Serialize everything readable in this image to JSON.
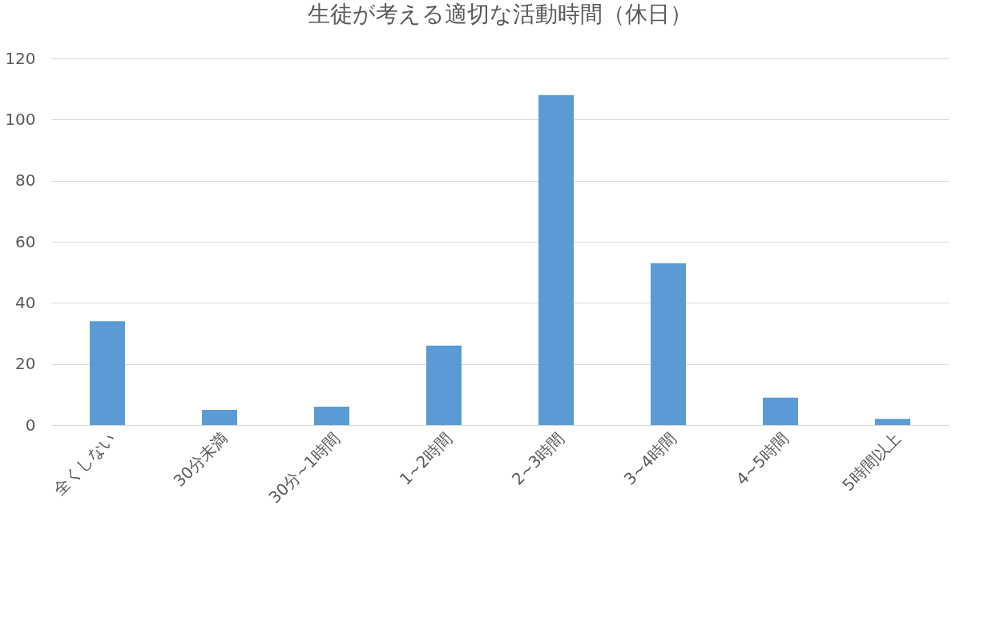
{
  "chart_data": {
    "type": "bar",
    "title": "生徒が考える適切な活動時間（休日）",
    "categories": [
      "全くしない",
      "30分未満",
      "30分~1時間",
      "1~2時間",
      "2~3時間",
      "3~4時間",
      "4~5時間",
      "5時間以上"
    ],
    "values": [
      34,
      5,
      6,
      26,
      108,
      53,
      9,
      2
    ],
    "color": "#5b9bd5",
    "ylim": [
      0,
      120
    ],
    "yticks": [
      0,
      20,
      40,
      60,
      80,
      100,
      120
    ],
    "grid": "y"
  }
}
